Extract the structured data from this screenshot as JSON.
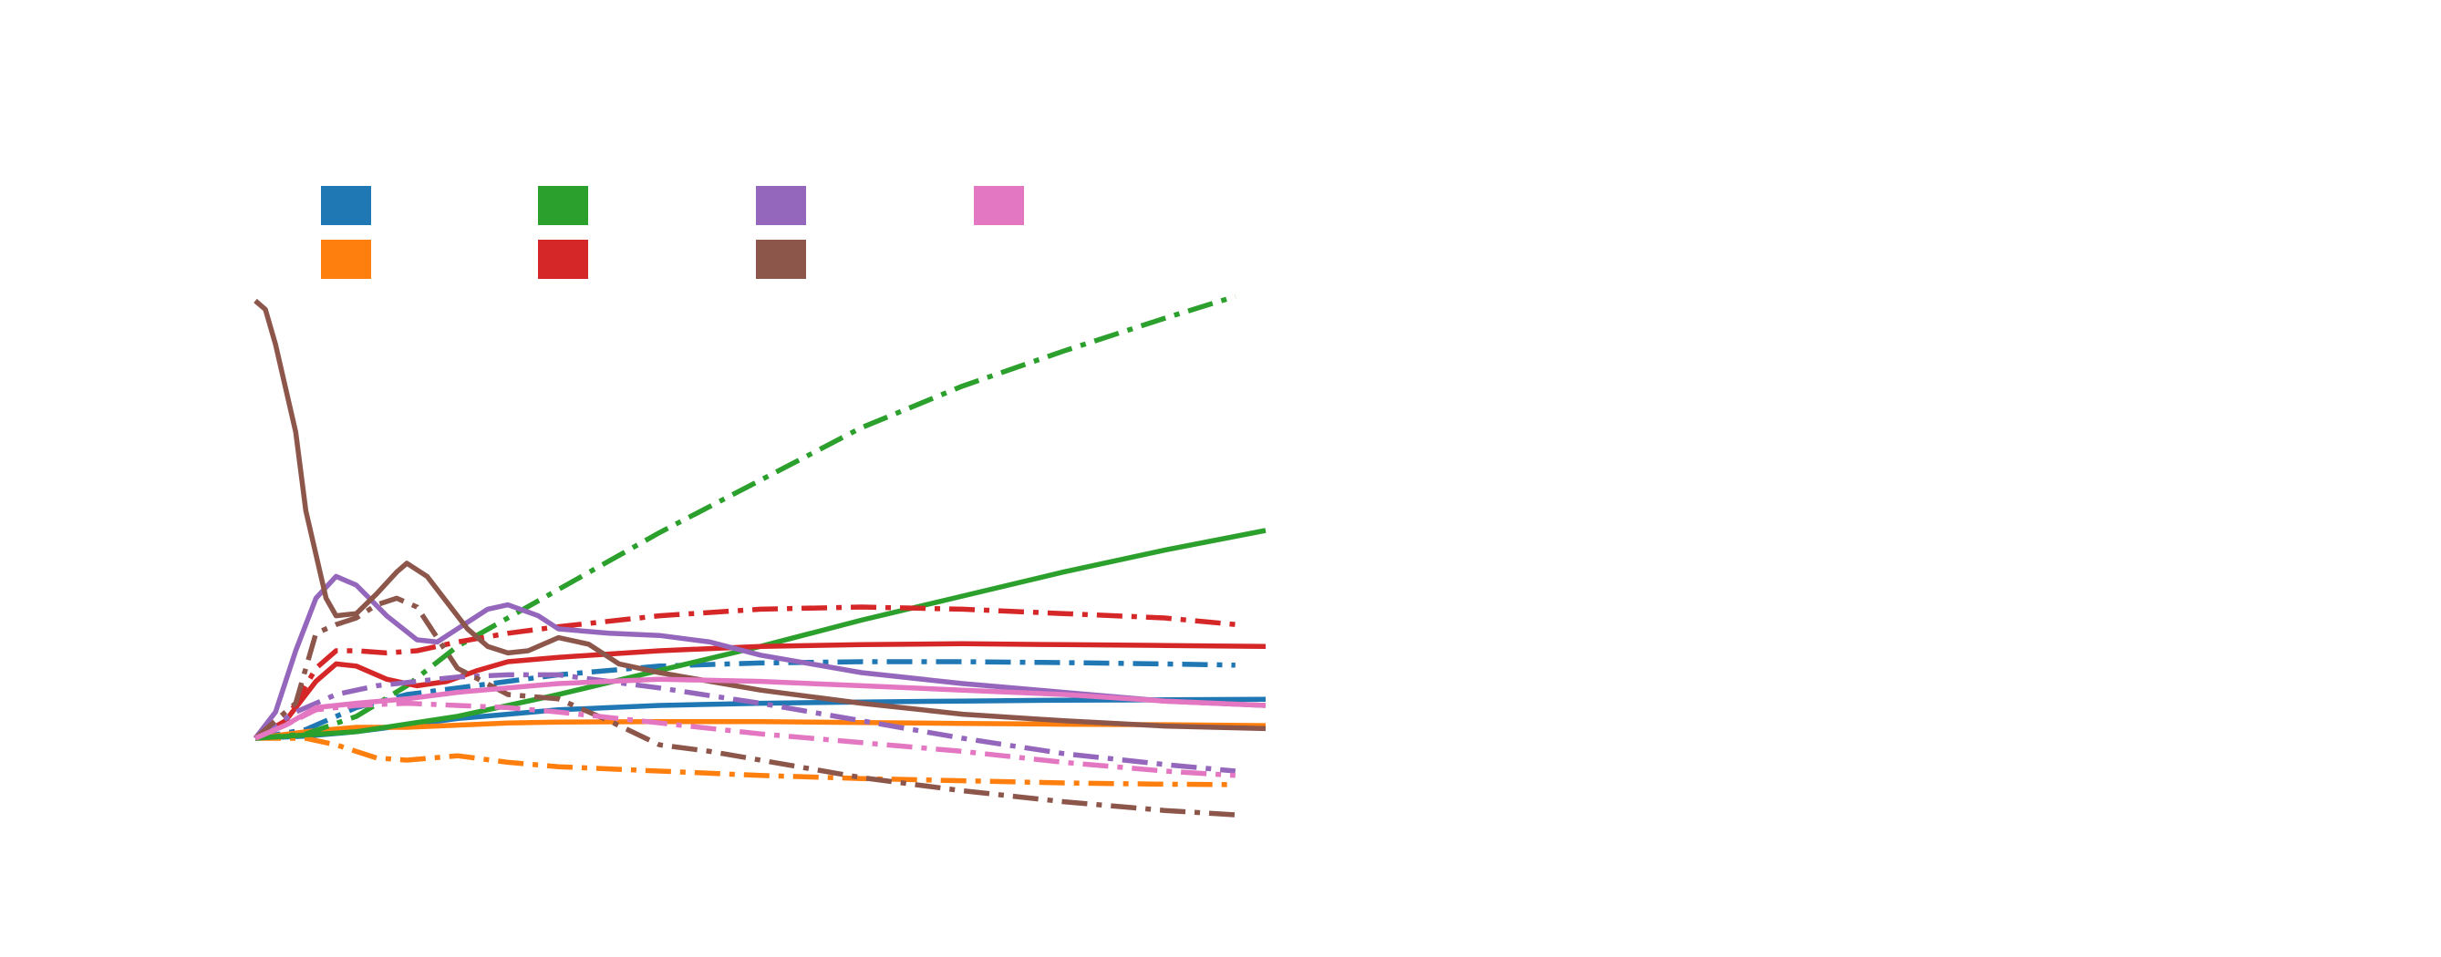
{
  "chart_data": {
    "type": "line",
    "title": "",
    "xlabel": "",
    "ylabel": "",
    "xlim": [
      0,
      100
    ],
    "ylim": [
      -15,
      100
    ],
    "grid": false,
    "axes_visible": false,
    "legend_placement": "upper-left",
    "legend_columns": 4,
    "colors": {
      "blue": "#1f77b4",
      "orange": "#ff7f0e",
      "green": "#2ca02c",
      "red": "#d62728",
      "purple": "#9467bd",
      "brown": "#8c564b",
      "pink": "#e377c2"
    },
    "legend": [
      {
        "color": "#1f77b4"
      },
      {
        "color": "#ff7f0e"
      },
      {
        "color": "#2ca02c"
      },
      {
        "color": "#d62728"
      },
      {
        "color": "#9467bd"
      },
      {
        "color": "#8c564b"
      },
      {
        "color": "#e377c2"
      }
    ],
    "series": [
      {
        "color": "#1f77b4",
        "style": "solid",
        "points": [
          [
            0,
            0
          ],
          [
            5,
            0.5
          ],
          [
            10,
            1.5
          ],
          [
            15,
            3
          ],
          [
            20,
            4.5
          ],
          [
            25,
            5.5
          ],
          [
            30,
            6.5
          ],
          [
            35,
            7
          ],
          [
            40,
            7.5
          ],
          [
            50,
            8
          ],
          [
            60,
            8.3
          ],
          [
            70,
            8.5
          ],
          [
            80,
            8.7
          ],
          [
            90,
            8.8
          ],
          [
            100,
            8.9
          ]
        ]
      },
      {
        "color": "#1f77b4",
        "style": "dashdot",
        "points": [
          [
            0,
            0
          ],
          [
            5,
            2
          ],
          [
            10,
            7
          ],
          [
            15,
            10
          ],
          [
            20,
            11.5
          ],
          [
            25,
            13
          ],
          [
            30,
            14.5
          ],
          [
            35,
            15.5
          ],
          [
            40,
            16.5
          ],
          [
            50,
            17.2
          ],
          [
            60,
            17.5
          ],
          [
            70,
            17.5
          ],
          [
            80,
            17.3
          ],
          [
            90,
            17
          ],
          [
            97,
            16.7
          ]
        ]
      },
      {
        "color": "#ff7f0e",
        "style": "solid",
        "points": [
          [
            0,
            0
          ],
          [
            5,
            1.5
          ],
          [
            10,
            2.5
          ],
          [
            15,
            2.5
          ],
          [
            20,
            3
          ],
          [
            25,
            3.5
          ],
          [
            30,
            3.7
          ],
          [
            40,
            3.8
          ],
          [
            50,
            3.8
          ],
          [
            60,
            3.6
          ],
          [
            70,
            3.4
          ],
          [
            80,
            3.2
          ],
          [
            90,
            3.1
          ],
          [
            100,
            2.9
          ]
        ]
      },
      {
        "color": "#ff7f0e",
        "style": "dashdot",
        "points": [
          [
            0,
            0
          ],
          [
            5,
            0
          ],
          [
            8,
            -1.5
          ],
          [
            12,
            -4.5
          ],
          [
            15,
            -5
          ],
          [
            20,
            -4
          ],
          [
            25,
            -5.5
          ],
          [
            30,
            -6.5
          ],
          [
            40,
            -7.5
          ],
          [
            50,
            -8.5
          ],
          [
            60,
            -9.2
          ],
          [
            70,
            -9.7
          ],
          [
            80,
            -10.2
          ],
          [
            90,
            -10.5
          ],
          [
            97,
            -10.6
          ]
        ]
      },
      {
        "color": "#2ca02c",
        "style": "solid",
        "points": [
          [
            0,
            0
          ],
          [
            10,
            1.5
          ],
          [
            20,
            5
          ],
          [
            30,
            10
          ],
          [
            40,
            15.5
          ],
          [
            50,
            21
          ],
          [
            60,
            27
          ],
          [
            70,
            32.5
          ],
          [
            80,
            38
          ],
          [
            90,
            43
          ],
          [
            100,
            47.5
          ]
        ]
      },
      {
        "color": "#2ca02c",
        "style": "dashdot",
        "points": [
          [
            0,
            0
          ],
          [
            5,
            1
          ],
          [
            10,
            5
          ],
          [
            15,
            12
          ],
          [
            20,
            21
          ],
          [
            25,
            27.5
          ],
          [
            30,
            34
          ],
          [
            40,
            47
          ],
          [
            50,
            59
          ],
          [
            60,
            71
          ],
          [
            70,
            80.5
          ],
          [
            80,
            88.5
          ],
          [
            90,
            96
          ],
          [
            97,
            101
          ]
        ]
      },
      {
        "color": "#d62728",
        "style": "solid",
        "points": [
          [
            0,
            0
          ],
          [
            3,
            4
          ],
          [
            6,
            13
          ],
          [
            8,
            17
          ],
          [
            10,
            16.5
          ],
          [
            13,
            13.5
          ],
          [
            16,
            12
          ],
          [
            19,
            13
          ],
          [
            22,
            15.5
          ],
          [
            25,
            17.5
          ],
          [
            30,
            18.5
          ],
          [
            40,
            20
          ],
          [
            50,
            21
          ],
          [
            60,
            21.4
          ],
          [
            70,
            21.6
          ],
          [
            80,
            21.4
          ],
          [
            90,
            21.2
          ],
          [
            100,
            21
          ]
        ]
      },
      {
        "color": "#d62728",
        "style": "dashdot",
        "points": [
          [
            0,
            0
          ],
          [
            3,
            4
          ],
          [
            6,
            16
          ],
          [
            8,
            20
          ],
          [
            10,
            20
          ],
          [
            13,
            19.5
          ],
          [
            16,
            20
          ],
          [
            20,
            22
          ],
          [
            25,
            24
          ],
          [
            30,
            25.5
          ],
          [
            40,
            28
          ],
          [
            50,
            29.5
          ],
          [
            60,
            30
          ],
          [
            70,
            29.5
          ],
          [
            80,
            28.5
          ],
          [
            90,
            27.5
          ],
          [
            97,
            26
          ]
        ]
      },
      {
        "color": "#9467bd",
        "style": "solid",
        "points": [
          [
            0,
            0
          ],
          [
            2,
            6
          ],
          [
            4,
            20
          ],
          [
            6,
            32
          ],
          [
            8,
            37
          ],
          [
            10,
            35
          ],
          [
            13,
            28
          ],
          [
            16,
            22.5
          ],
          [
            18,
            22
          ],
          [
            20,
            25
          ],
          [
            23,
            29.5
          ],
          [
            25,
            30.5
          ],
          [
            28,
            28
          ],
          [
            30,
            25
          ],
          [
            35,
            24
          ],
          [
            40,
            23.5
          ],
          [
            45,
            22
          ],
          [
            50,
            19
          ],
          [
            60,
            15
          ],
          [
            70,
            12.5
          ],
          [
            80,
            10.5
          ],
          [
            90,
            8.5
          ],
          [
            100,
            7.5
          ]
        ]
      },
      {
        "color": "#9467bd",
        "style": "dashdot",
        "points": [
          [
            0,
            0
          ],
          [
            4,
            6
          ],
          [
            8,
            10
          ],
          [
            12,
            12
          ],
          [
            16,
            13
          ],
          [
            20,
            14
          ],
          [
            25,
            14.5
          ],
          [
            30,
            14.5
          ],
          [
            35,
            13
          ],
          [
            40,
            11.5
          ],
          [
            50,
            8
          ],
          [
            60,
            4
          ],
          [
            70,
            0
          ],
          [
            80,
            -3.5
          ],
          [
            90,
            -6
          ],
          [
            97,
            -7.5
          ]
        ]
      },
      {
        "color": "#8c564b",
        "style": "solid",
        "points": [
          [
            0,
            100
          ],
          [
            1,
            98
          ],
          [
            2,
            90
          ],
          [
            4,
            70
          ],
          [
            5,
            52
          ],
          [
            6,
            42
          ],
          [
            7,
            32
          ],
          [
            8,
            28
          ],
          [
            10,
            28.5
          ],
          [
            12,
            33
          ],
          [
            14,
            38
          ],
          [
            15,
            40
          ],
          [
            17,
            37
          ],
          [
            19,
            31
          ],
          [
            21,
            25
          ],
          [
            23,
            21
          ],
          [
            25,
            19.5
          ],
          [
            27,
            20
          ],
          [
            30,
            23
          ],
          [
            33,
            21.5
          ],
          [
            36,
            17
          ],
          [
            40,
            15
          ],
          [
            50,
            11
          ],
          [
            60,
            8
          ],
          [
            70,
            5.5
          ],
          [
            80,
            4
          ],
          [
            90,
            2.8
          ],
          [
            100,
            2.2
          ]
        ]
      },
      {
        "color": "#8c564b",
        "style": "dashdot",
        "points": [
          [
            0,
            0
          ],
          [
            4,
            8
          ],
          [
            6,
            24
          ],
          [
            8,
            26
          ],
          [
            10,
            27.5
          ],
          [
            12,
            30.5
          ],
          [
            14,
            32
          ],
          [
            16,
            30
          ],
          [
            18,
            23
          ],
          [
            20,
            16
          ],
          [
            25,
            10
          ],
          [
            30,
            9
          ],
          [
            35,
            4
          ],
          [
            40,
            -1.5
          ],
          [
            45,
            -3
          ],
          [
            50,
            -5
          ],
          [
            60,
            -9
          ],
          [
            70,
            -12
          ],
          [
            80,
            -14.5
          ],
          [
            90,
            -16.5
          ],
          [
            97,
            -17.5
          ]
        ]
      },
      {
        "color": "#e377c2",
        "style": "solid",
        "points": [
          [
            0,
            0
          ],
          [
            3,
            3
          ],
          [
            6,
            7
          ],
          [
            10,
            8
          ],
          [
            15,
            9
          ],
          [
            20,
            10.5
          ],
          [
            25,
            11.5
          ],
          [
            30,
            12.5
          ],
          [
            40,
            13.5
          ],
          [
            50,
            13
          ],
          [
            60,
            12
          ],
          [
            70,
            11
          ],
          [
            80,
            10
          ],
          [
            90,
            8.5
          ],
          [
            100,
            7.5
          ]
        ]
      },
      {
        "color": "#e377c2",
        "style": "dashdot",
        "points": [
          [
            0,
            0
          ],
          [
            3,
            3
          ],
          [
            6,
            6.5
          ],
          [
            10,
            7.5
          ],
          [
            15,
            8
          ],
          [
            20,
            7.5
          ],
          [
            25,
            7
          ],
          [
            30,
            6
          ],
          [
            40,
            3.5
          ],
          [
            50,
            1
          ],
          [
            60,
            -1
          ],
          [
            70,
            -3
          ],
          [
            80,
            -5.5
          ],
          [
            90,
            -7.5
          ],
          [
            97,
            -8.5
          ]
        ]
      }
    ]
  }
}
